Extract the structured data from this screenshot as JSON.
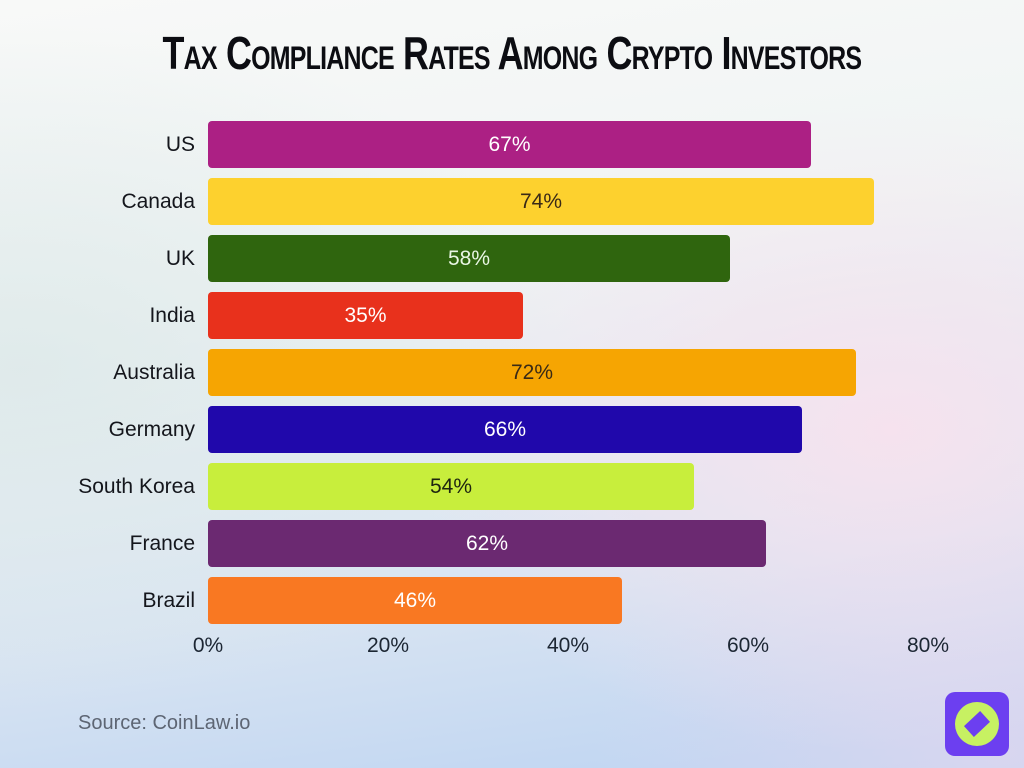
{
  "title": "Tax Compliance Rates Among Crypto Investors",
  "source": "Source: CoinLaw.io",
  "chart_data": {
    "type": "bar",
    "orientation": "horizontal",
    "title": "Tax Compliance Rates Among Crypto Investors",
    "categories": [
      "US",
      "Canada",
      "UK",
      "India",
      "Australia",
      "Germany",
      "South Korea",
      "France",
      "Brazil"
    ],
    "values": [
      67,
      74,
      58,
      35,
      72,
      66,
      54,
      62,
      46
    ],
    "value_labels": [
      "67%",
      "74%",
      "58%",
      "35%",
      "72%",
      "66%",
      "54%",
      "62%",
      "46%"
    ],
    "bar_colors": [
      "#AC2084",
      "#FDD12E",
      "#2F650E",
      "#E8311C",
      "#F6A502",
      "#2008AB",
      "#C8EE3C",
      "#6B2971",
      "#F97822"
    ],
    "value_label_colors": [
      "#FFFFFF",
      "#3A2A16",
      "#E9F6E4",
      "#FFFFFF",
      "#3A2A16",
      "#FFFFFF",
      "#1E2510",
      "#FFFFFF",
      "#FFFFFF"
    ],
    "xlabel": "",
    "ylabel": "",
    "xlim": [
      0,
      80
    ],
    "x_ticks": [
      "0%",
      "20%",
      "40%",
      "60%",
      "80%"
    ],
    "x_tick_values": [
      0,
      20,
      40,
      60,
      80
    ],
    "grid": false,
    "legend": "none",
    "value_label_position": "center"
  },
  "logo": {
    "name": "coinlaw-logo",
    "square_color": "#6C3FF0",
    "circle_color": "#C7F162"
  },
  "colors": {
    "title_text": "#0c0d12",
    "axis_text": "#1c2633",
    "category_text": "#14161c",
    "source_text": "#5d6573",
    "background_top": "#f8f9f8",
    "background_bottom": "#bcd3f2",
    "background_pink": "#f7e2ee"
  }
}
